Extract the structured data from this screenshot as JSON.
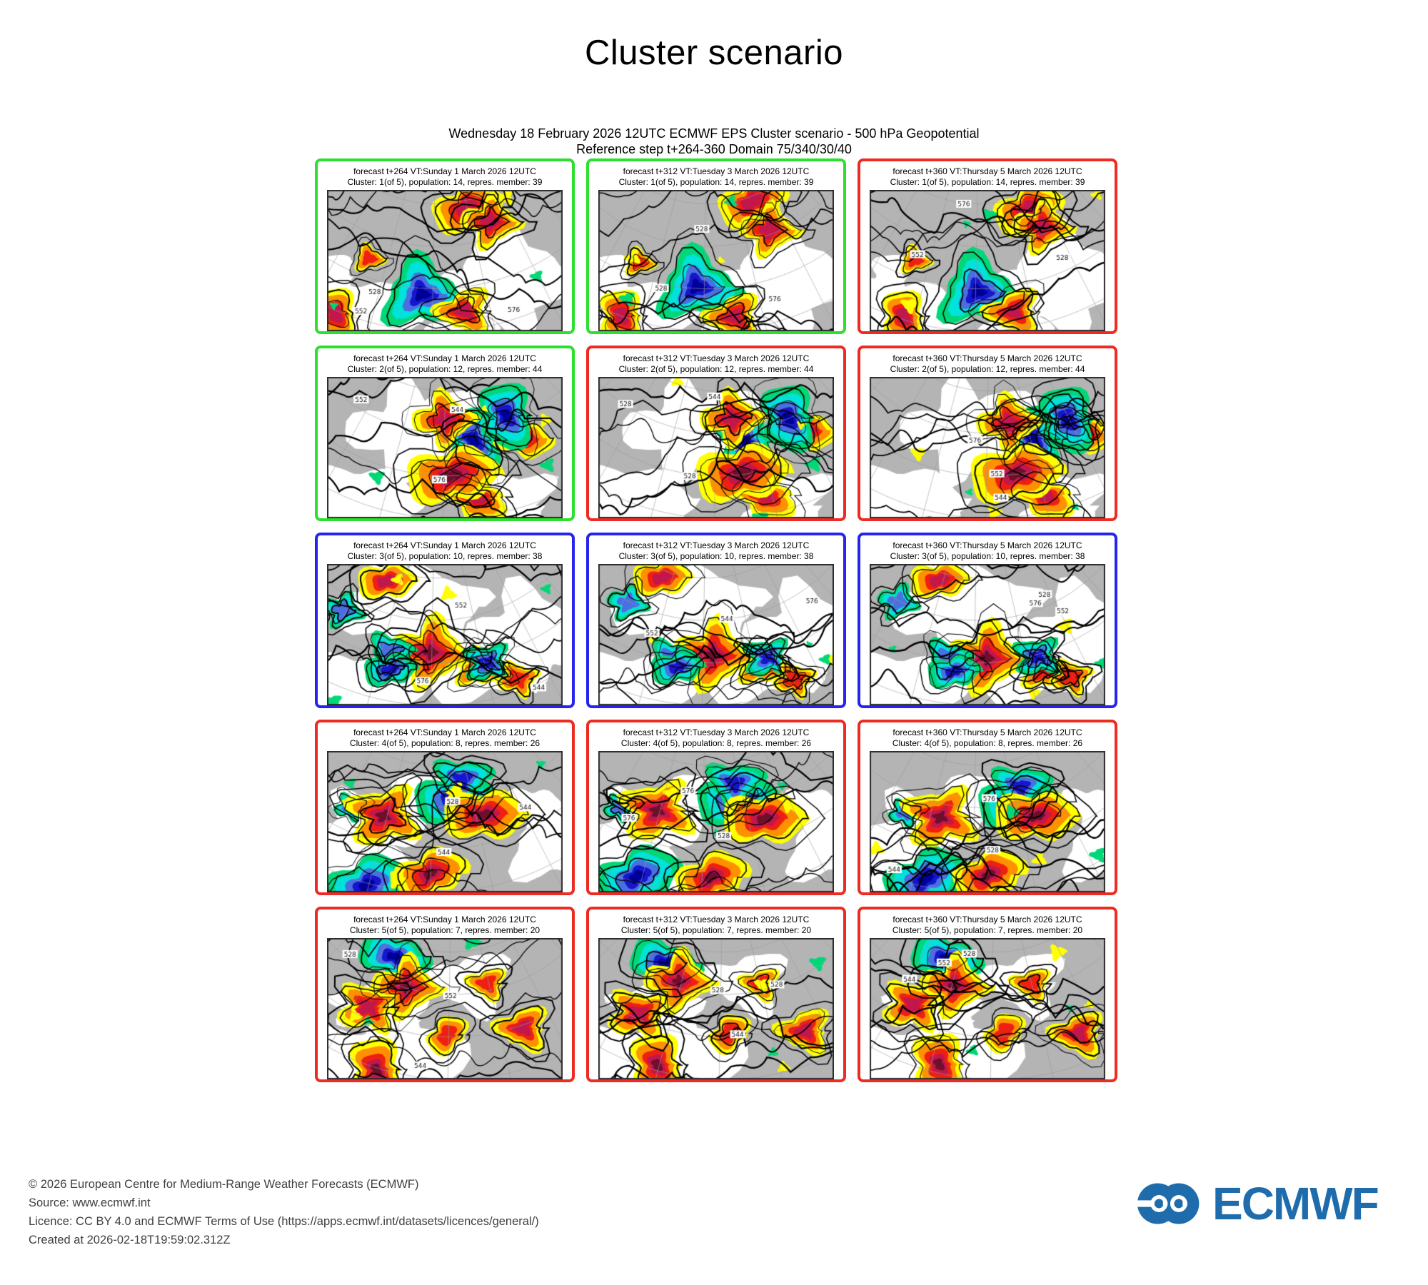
{
  "title": "Cluster scenario",
  "subtitle": {
    "line1": "Wednesday 18 February 2026 12UTC ECMWF EPS Cluster scenario - 500 hPa Geopotential",
    "line2": "Reference step t+264-360 Domain 75/340/30/40"
  },
  "chart_data": {
    "type": "heatmap",
    "title": "Wednesday 18 February 2026 12UTC ECMWF EPS Cluster scenario - 500 hPa Geopotential",
    "subtitle": "Reference step t+264-360 Domain 75/340/30/40",
    "layout": "5 cluster rows x 3 forecast-step columns of filled-contour geopotential maps",
    "columns": [
      {
        "step": "t+264",
        "valid_time": "Sunday 1 March 2026 12UTC"
      },
      {
        "step": "t+312",
        "valid_time": "Tuesday 3 March 2026 12UTC"
      },
      {
        "step": "t+360",
        "valid_time": "Thursday 5 March 2026 12UTC"
      }
    ],
    "clusters": [
      {
        "cluster": 1,
        "of": 5,
        "population": 14,
        "repres_member": 39
      },
      {
        "cluster": 2,
        "of": 5,
        "population": 12,
        "repres_member": 44
      },
      {
        "cluster": 3,
        "of": 5,
        "population": 10,
        "repres_member": 38
      },
      {
        "cluster": 4,
        "of": 5,
        "population": 8,
        "repres_member": 26
      },
      {
        "cluster": 5,
        "of": 5,
        "population": 7,
        "repres_member": 20
      }
    ]
  },
  "panel_grid": {
    "rows": 5,
    "columns": 3,
    "border_colors": {
      "green": "#2de02d",
      "red": "#ee2b22",
      "blue": "#2424ee"
    },
    "panels": [
      {
        "forecast": "forecast t+264 VT:Sunday 1 March 2026 12UTC",
        "cluster": "Cluster: 1(of 5), population: 14, repres. member: 39",
        "border": "green"
      },
      {
        "forecast": "forecast t+312 VT:Tuesday 3 March 2026 12UTC",
        "cluster": "Cluster: 1(of 5), population: 14, repres. member: 39",
        "border": "green"
      },
      {
        "forecast": "forecast t+360 VT:Thursday 5 March 2026 12UTC",
        "cluster": "Cluster: 1(of 5), population: 14, repres. member: 39",
        "border": "red"
      },
      {
        "forecast": "forecast t+264 VT:Sunday 1 March 2026 12UTC",
        "cluster": "Cluster: 2(of 5), population: 12, repres. member: 44",
        "border": "green"
      },
      {
        "forecast": "forecast t+312 VT:Tuesday 3 March 2026 12UTC",
        "cluster": "Cluster: 2(of 5), population: 12, repres. member: 44",
        "border": "red"
      },
      {
        "forecast": "forecast t+360 VT:Thursday 5 March 2026 12UTC",
        "cluster": "Cluster: 2(of 5), population: 12, repres. member: 44",
        "border": "red"
      },
      {
        "forecast": "forecast t+264 VT:Sunday 1 March 2026 12UTC",
        "cluster": "Cluster: 3(of 5), population: 10, repres. member: 38",
        "border": "blue"
      },
      {
        "forecast": "forecast t+312 VT:Tuesday 3 March 2026 12UTC",
        "cluster": "Cluster: 3(of 5), population: 10, repres. member: 38",
        "border": "blue"
      },
      {
        "forecast": "forecast t+360 VT:Thursday 5 March 2026 12UTC",
        "cluster": "Cluster: 3(of 5), population: 10, repres. member: 38",
        "border": "blue"
      },
      {
        "forecast": "forecast t+264 VT:Sunday 1 March 2026 12UTC",
        "cluster": "Cluster: 4(of 5), population: 8, repres. member: 26",
        "border": "red"
      },
      {
        "forecast": "forecast t+312 VT:Tuesday 3 March 2026 12UTC",
        "cluster": "Cluster: 4(of 5), population: 8, repres. member: 26",
        "border": "red"
      },
      {
        "forecast": "forecast t+360 VT:Thursday 5 March 2026 12UTC",
        "cluster": "Cluster: 4(of 5), population: 8, repres. member: 26",
        "border": "red"
      },
      {
        "forecast": "forecast t+264 VT:Sunday 1 March 2026 12UTC",
        "cluster": "Cluster: 5(of 5), population: 7, repres. member: 20",
        "border": "red"
      },
      {
        "forecast": "forecast t+312 VT:Tuesday 3 March 2026 12UTC",
        "cluster": "Cluster: 5(of 5), population: 7, repres. member: 20",
        "border": "red"
      },
      {
        "forecast": "forecast t+360 VT:Thursday 5 March 2026 12UTC",
        "cluster": "Cluster: 5(of 5), population: 7, repres. member: 20",
        "border": "red"
      }
    ],
    "map_contour_labels": [
      "528",
      "544",
      "552",
      "576"
    ],
    "map_colors": {
      "background": "#b4b4b4",
      "land_white": "#ffffff",
      "positive": [
        "#ffff00",
        "#ff9000",
        "#ee2012",
        "#c2174d",
        "#6e0f2c"
      ],
      "negative": [
        "#00d877",
        "#00e2da",
        "#4a6fe0",
        "#1616cc",
        "#000099"
      ],
      "contour": "#000000",
      "graticule": "#9c9c9c"
    }
  },
  "footer": {
    "lines": [
      "© 2026 European Centre for Medium-Range Weather Forecasts (ECMWF)",
      "Source: www.ecmwf.int",
      "Licence: CC BY 4.0 and ECMWF Terms of Use (https://apps.ecmwf.int/datasets/licences/general/)",
      "Created at 2026-02-18T19:59:02.312Z"
    ]
  },
  "logo": {
    "text": "ECMWF",
    "color": "#1e6cab"
  }
}
